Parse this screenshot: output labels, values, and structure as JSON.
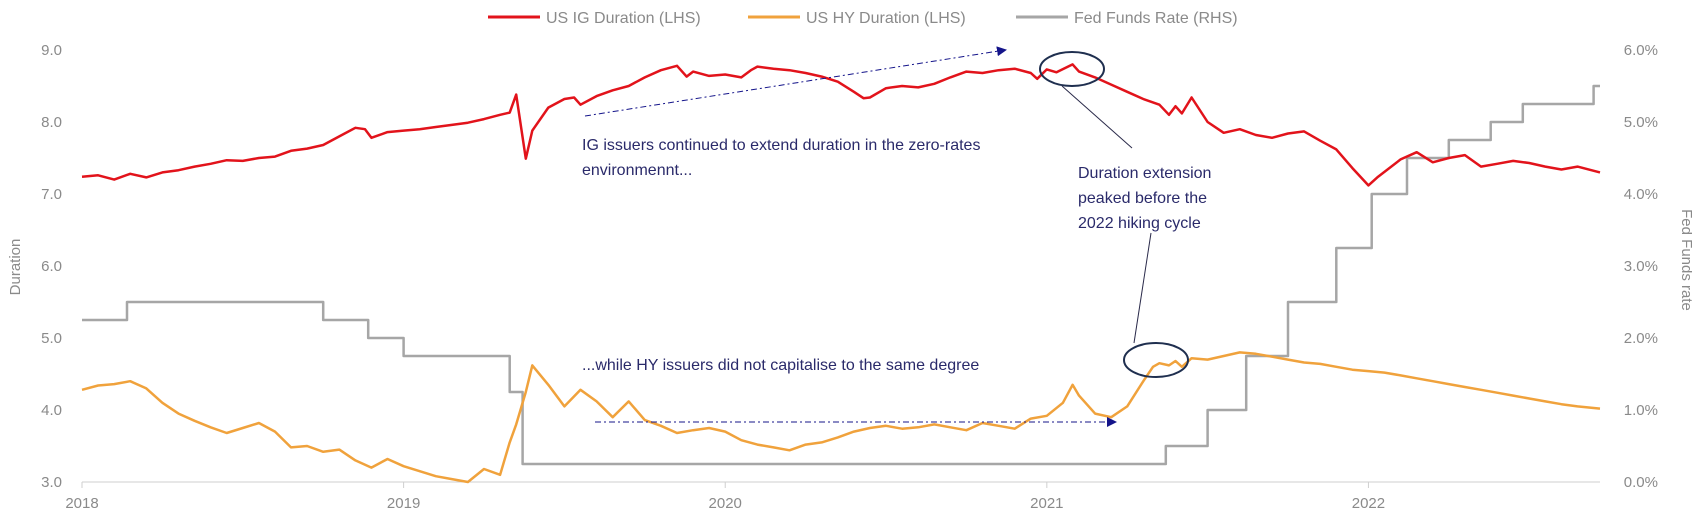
{
  "chart_data": {
    "type": "line",
    "title": "",
    "xlabel": "",
    "ylabel": "Duration",
    "y2label": "Fed Funds rate",
    "xlim": [
      2018.0,
      2022.72
    ],
    "ylim": [
      3.0,
      9.0
    ],
    "y2lim": [
      0.0,
      6.0
    ],
    "grid": false,
    "legend_position": "top-center",
    "x_ticks": [
      2018,
      2019,
      2020,
      2021,
      2022
    ],
    "x_tick_labels": [
      "2018",
      "2019",
      "2020",
      "2021",
      "2022"
    ],
    "y_ticks": [
      3,
      4,
      5,
      6,
      7,
      8,
      9
    ],
    "y_tick_labels": [
      "3.0",
      "4.0",
      "5.0",
      "6.0",
      "7.0",
      "8.0",
      "9.0"
    ],
    "y2_ticks": [
      0,
      1,
      2,
      3,
      4,
      5,
      6
    ],
    "y2_tick_labels": [
      "0.0%",
      "1.0%",
      "2.0%",
      "3.0%",
      "4.0%",
      "5.0%",
      "6.0%"
    ],
    "series": [
      {
        "name": "US IG Duration (LHS)",
        "axis": "left",
        "color": "#e2131b",
        "step": false,
        "points": [
          [
            2018.0,
            7.24
          ],
          [
            2018.05,
            7.26
          ],
          [
            2018.1,
            7.2
          ],
          [
            2018.15,
            7.28
          ],
          [
            2018.2,
            7.23
          ],
          [
            2018.25,
            7.3
          ],
          [
            2018.3,
            7.33
          ],
          [
            2018.35,
            7.38
          ],
          [
            2018.4,
            7.42
          ],
          [
            2018.45,
            7.47
          ],
          [
            2018.5,
            7.46
          ],
          [
            2018.55,
            7.5
          ],
          [
            2018.6,
            7.52
          ],
          [
            2018.65,
            7.6
          ],
          [
            2018.7,
            7.63
          ],
          [
            2018.75,
            7.68
          ],
          [
            2018.8,
            7.8
          ],
          [
            2018.85,
            7.92
          ],
          [
            2018.88,
            7.9
          ],
          [
            2018.9,
            7.78
          ],
          [
            2018.95,
            7.86
          ],
          [
            2019.0,
            7.88
          ],
          [
            2019.05,
            7.9
          ],
          [
            2019.1,
            7.93
          ],
          [
            2019.15,
            7.96
          ],
          [
            2019.2,
            7.99
          ],
          [
            2019.25,
            8.04
          ],
          [
            2019.3,
            8.1
          ],
          [
            2019.33,
            8.13
          ],
          [
            2019.35,
            8.38
          ],
          [
            2019.38,
            7.49
          ],
          [
            2019.4,
            7.88
          ],
          [
            2019.45,
            8.2
          ],
          [
            2019.5,
            8.32
          ],
          [
            2019.53,
            8.34
          ],
          [
            2019.55,
            8.24
          ],
          [
            2019.6,
            8.36
          ],
          [
            2019.65,
            8.44
          ],
          [
            2019.7,
            8.5
          ],
          [
            2019.75,
            8.62
          ],
          [
            2019.8,
            8.72
          ],
          [
            2019.85,
            8.78
          ],
          [
            2019.88,
            8.63
          ],
          [
            2019.9,
            8.7
          ],
          [
            2019.95,
            8.64
          ],
          [
            2020.0,
            8.66
          ],
          [
            2020.05,
            8.62
          ],
          [
            2020.08,
            8.72
          ],
          [
            2020.1,
            8.77
          ],
          [
            2020.15,
            8.74
          ],
          [
            2020.2,
            8.72
          ],
          [
            2020.25,
            8.68
          ],
          [
            2020.3,
            8.63
          ],
          [
            2020.35,
            8.56
          ],
          [
            2020.4,
            8.42
          ],
          [
            2020.43,
            8.33
          ],
          [
            2020.45,
            8.34
          ],
          [
            2020.5,
            8.47
          ],
          [
            2020.55,
            8.5
          ],
          [
            2020.6,
            8.48
          ],
          [
            2020.65,
            8.53
          ],
          [
            2020.7,
            8.62
          ],
          [
            2020.75,
            8.7
          ],
          [
            2020.8,
            8.68
          ],
          [
            2020.85,
            8.72
          ],
          [
            2020.9,
            8.74
          ],
          [
            2020.95,
            8.68
          ],
          [
            2020.97,
            8.6
          ],
          [
            2021.0,
            8.73
          ],
          [
            2021.03,
            8.69
          ],
          [
            2021.08,
            8.8
          ],
          [
            2021.1,
            8.7
          ],
          [
            2021.15,
            8.62
          ],
          [
            2021.2,
            8.52
          ],
          [
            2021.25,
            8.42
          ],
          [
            2021.3,
            8.32
          ],
          [
            2021.35,
            8.24
          ],
          [
            2021.38,
            8.1
          ],
          [
            2021.4,
            8.22
          ],
          [
            2021.42,
            8.12
          ],
          [
            2021.45,
            8.34
          ],
          [
            2021.5,
            8.0
          ],
          [
            2021.55,
            7.85
          ],
          [
            2021.6,
            7.9
          ],
          [
            2021.65,
            7.82
          ],
          [
            2021.7,
            7.78
          ],
          [
            2021.75,
            7.84
          ],
          [
            2021.8,
            7.87
          ],
          [
            2021.85,
            7.74
          ],
          [
            2021.9,
            7.62
          ],
          [
            2021.95,
            7.36
          ],
          [
            2022.0,
            7.12
          ],
          [
            2022.03,
            7.24
          ],
          [
            2022.1,
            7.48
          ],
          [
            2022.15,
            7.58
          ],
          [
            2022.2,
            7.44
          ],
          [
            2022.25,
            7.5
          ],
          [
            2022.3,
            7.54
          ],
          [
            2022.35,
            7.38
          ],
          [
            2022.4,
            7.42
          ],
          [
            2022.45,
            7.46
          ],
          [
            2022.5,
            7.43
          ],
          [
            2022.55,
            7.38
          ],
          [
            2022.6,
            7.34
          ],
          [
            2022.65,
            7.38
          ],
          [
            2022.72,
            7.3
          ]
        ]
      },
      {
        "name": "US HY Duration (LHS)",
        "axis": "left",
        "color": "#f0a23c",
        "step": false,
        "points": [
          [
            2018.0,
            4.28
          ],
          [
            2018.05,
            4.34
          ],
          [
            2018.1,
            4.36
          ],
          [
            2018.15,
            4.4
          ],
          [
            2018.2,
            4.3
          ],
          [
            2018.25,
            4.1
          ],
          [
            2018.3,
            3.95
          ],
          [
            2018.35,
            3.85
          ],
          [
            2018.4,
            3.76
          ],
          [
            2018.45,
            3.68
          ],
          [
            2018.5,
            3.75
          ],
          [
            2018.55,
            3.82
          ],
          [
            2018.6,
            3.7
          ],
          [
            2018.65,
            3.48
          ],
          [
            2018.7,
            3.5
          ],
          [
            2018.75,
            3.42
          ],
          [
            2018.8,
            3.45
          ],
          [
            2018.85,
            3.3
          ],
          [
            2018.9,
            3.2
          ],
          [
            2018.95,
            3.32
          ],
          [
            2019.0,
            3.22
          ],
          [
            2019.05,
            3.15
          ],
          [
            2019.1,
            3.08
          ],
          [
            2019.15,
            3.04
          ],
          [
            2019.2,
            3.0
          ],
          [
            2019.25,
            3.18
          ],
          [
            2019.3,
            3.1
          ],
          [
            2019.33,
            3.55
          ],
          [
            2019.35,
            3.8
          ],
          [
            2019.38,
            4.25
          ],
          [
            2019.4,
            4.62
          ],
          [
            2019.45,
            4.35
          ],
          [
            2019.5,
            4.05
          ],
          [
            2019.55,
            4.28
          ],
          [
            2019.6,
            4.12
          ],
          [
            2019.65,
            3.9
          ],
          [
            2019.7,
            4.12
          ],
          [
            2019.75,
            3.86
          ],
          [
            2019.8,
            3.78
          ],
          [
            2019.85,
            3.68
          ],
          [
            2019.9,
            3.72
          ],
          [
            2019.95,
            3.75
          ],
          [
            2020.0,
            3.7
          ],
          [
            2020.05,
            3.58
          ],
          [
            2020.1,
            3.52
          ],
          [
            2020.15,
            3.48
          ],
          [
            2020.2,
            3.44
          ],
          [
            2020.25,
            3.52
          ],
          [
            2020.3,
            3.55
          ],
          [
            2020.35,
            3.62
          ],
          [
            2020.4,
            3.7
          ],
          [
            2020.45,
            3.75
          ],
          [
            2020.5,
            3.78
          ],
          [
            2020.55,
            3.74
          ],
          [
            2020.6,
            3.76
          ],
          [
            2020.65,
            3.8
          ],
          [
            2020.7,
            3.76
          ],
          [
            2020.75,
            3.72
          ],
          [
            2020.8,
            3.82
          ],
          [
            2020.85,
            3.78
          ],
          [
            2020.9,
            3.74
          ],
          [
            2020.95,
            3.88
          ],
          [
            2021.0,
            3.92
          ],
          [
            2021.05,
            4.1
          ],
          [
            2021.08,
            4.35
          ],
          [
            2021.1,
            4.2
          ],
          [
            2021.15,
            3.95
          ],
          [
            2021.2,
            3.9
          ],
          [
            2021.25,
            4.05
          ],
          [
            2021.3,
            4.4
          ],
          [
            2021.33,
            4.6
          ],
          [
            2021.35,
            4.65
          ],
          [
            2021.38,
            4.62
          ],
          [
            2021.4,
            4.68
          ],
          [
            2021.42,
            4.6
          ],
          [
            2021.45,
            4.72
          ],
          [
            2021.5,
            4.7
          ],
          [
            2021.55,
            4.75
          ],
          [
            2021.6,
            4.8
          ],
          [
            2021.65,
            4.78
          ],
          [
            2021.7,
            4.74
          ],
          [
            2021.75,
            4.7
          ],
          [
            2021.8,
            4.66
          ],
          [
            2021.85,
            4.64
          ],
          [
            2021.9,
            4.6
          ],
          [
            2021.95,
            4.56
          ],
          [
            2022.0,
            4.54
          ],
          [
            2022.05,
            4.52
          ],
          [
            2022.1,
            4.48
          ],
          [
            2022.15,
            4.44
          ],
          [
            2022.2,
            4.4
          ],
          [
            2022.25,
            4.36
          ],
          [
            2022.3,
            4.32
          ],
          [
            2022.35,
            4.28
          ],
          [
            2022.4,
            4.24
          ],
          [
            2022.45,
            4.2
          ],
          [
            2022.5,
            4.16
          ],
          [
            2022.55,
            4.12
          ],
          [
            2022.6,
            4.08
          ],
          [
            2022.65,
            4.05
          ],
          [
            2022.72,
            4.02
          ]
        ]
      },
      {
        "name": "Fed Funds Rate (RHS)",
        "axis": "right",
        "color": "#a6a6a6",
        "step": true,
        "points": [
          [
            2018.0,
            2.25
          ],
          [
            2018.14,
            2.5
          ],
          [
            2018.75,
            2.25
          ],
          [
            2018.89,
            2.0
          ],
          [
            2019.0,
            1.75
          ],
          [
            2019.33,
            1.25
          ],
          [
            2019.37,
            0.25
          ],
          [
            2021.37,
            0.5
          ],
          [
            2021.5,
            1.0
          ],
          [
            2021.62,
            1.75
          ],
          [
            2021.75,
            2.5
          ],
          [
            2021.9,
            3.25
          ],
          [
            2022.01,
            4.0
          ],
          [
            2022.12,
            4.5
          ],
          [
            2022.25,
            4.75
          ],
          [
            2022.38,
            5.0
          ],
          [
            2022.48,
            5.25
          ],
          [
            2022.7,
            5.5
          ]
        ]
      }
    ],
    "annotations": [
      "IG issuers continued to extend duration in the zero-rates",
      "environmennt...",
      "...while HY issuers did not capitalise to the same degree",
      "Duration extension",
      "peaked before the",
      "2022 hiking cycle"
    ]
  }
}
